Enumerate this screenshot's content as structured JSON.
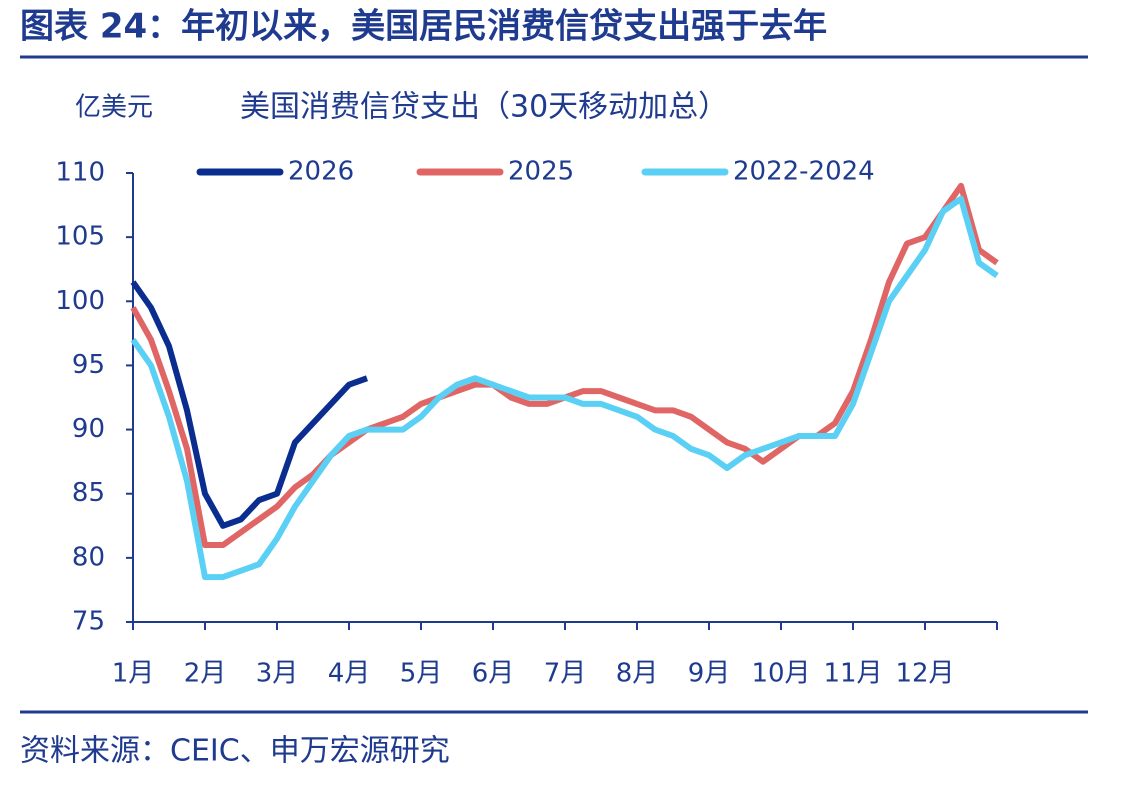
{
  "chart_data": {
    "type": "line",
    "title": "图表 24：年初以来，美国居民消费信贷支出强于去年",
    "unit": "亿美元",
    "subtitle": "美国消费信贷支出（30天移动加总）",
    "source": "资料来源：CEIC、申万宏源研究",
    "categories": [
      "1月",
      null,
      null,
      null,
      "2月",
      null,
      null,
      null,
      "3月",
      null,
      null,
      null,
      "4月",
      null,
      null,
      null,
      "5月",
      null,
      null,
      null,
      "6月",
      null,
      null,
      null,
      "7月",
      null,
      null,
      null,
      "8月",
      null,
      null,
      null,
      "9月",
      null,
      null,
      null,
      "10月",
      null,
      null,
      null,
      "11月",
      null,
      null,
      null,
      "12月",
      null,
      null,
      null,
      null
    ],
    "series": [
      {
        "name": "2026",
        "color": "#0a2d8f",
        "values": [
          101.5,
          99.5,
          96.5,
          91.5,
          85,
          82.5,
          83,
          84.5,
          85,
          89,
          90.5,
          92,
          93.5,
          94,
          null,
          null,
          null,
          null,
          null,
          null,
          null,
          null,
          null,
          null,
          null,
          null,
          null,
          null,
          null,
          null,
          null,
          null,
          null,
          null,
          null,
          null,
          null,
          null,
          null,
          null,
          null,
          null,
          null,
          null,
          null,
          null,
          null,
          null,
          null
        ]
      },
      {
        "name": "2025",
        "color": "#e06666",
        "values": [
          99.5,
          97,
          93,
          88.5,
          81,
          81,
          82,
          83,
          84,
          85.5,
          86.5,
          88,
          89,
          90,
          90.5,
          91,
          92,
          92.5,
          93,
          93.5,
          93.5,
          92.5,
          92,
          92,
          92.5,
          93,
          93,
          92.5,
          92,
          91.5,
          91.5,
          91,
          90,
          89,
          88.5,
          87.5,
          88.5,
          89.5,
          89.5,
          90.5,
          93,
          97,
          101.5,
          104.5,
          105,
          107,
          109,
          104,
          103
        ]
      },
      {
        "name": "2022-2024",
        "color": "#5bd0f5",
        "values": [
          97,
          95,
          91,
          86,
          78.5,
          78.5,
          79,
          79.5,
          81.5,
          84,
          86,
          88,
          89.5,
          90,
          90,
          90,
          91,
          92.5,
          93.5,
          94,
          93.5,
          93,
          92.5,
          92.5,
          92.5,
          92,
          92,
          91.5,
          91,
          90,
          89.5,
          88.5,
          88,
          87,
          88,
          88.5,
          89,
          89.5,
          89.5,
          89.5,
          92,
          96,
          100,
          102,
          104,
          107,
          108,
          103,
          102
        ]
      }
    ],
    "ylim": [
      75,
      110
    ],
    "yticks": [
      75,
      80,
      85,
      90,
      95,
      100,
      105,
      110
    ]
  }
}
